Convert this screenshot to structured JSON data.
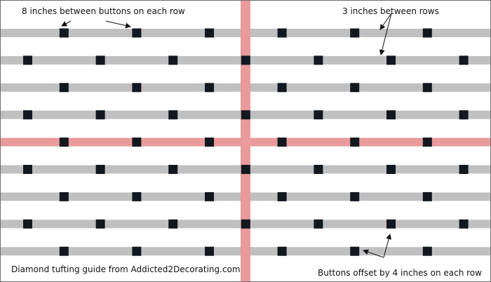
{
  "annotations": {
    "button_spacing": "8 inches between buttons on each row",
    "row_spacing": "3 inches between rows",
    "credit": "Diamond tufting guide from Addicted2Decorating.com",
    "offset": "Buttons offset by 4 inches on each row"
  },
  "colors": {
    "background": "#ffffff",
    "row_line": "#c0c0c0",
    "center_line": "#e99a9a",
    "button": "#111820",
    "arrow": "#111111",
    "border": "#6e6e6e"
  },
  "grid": {
    "row_count": 9,
    "center_row_index": 4,
    "row_spacing_inches": 3,
    "button_spacing_inches": 8,
    "row_offset_inches": 4,
    "buttons_per_row": [
      6,
      7,
      6,
      7,
      6,
      7,
      6,
      7,
      6
    ]
  }
}
